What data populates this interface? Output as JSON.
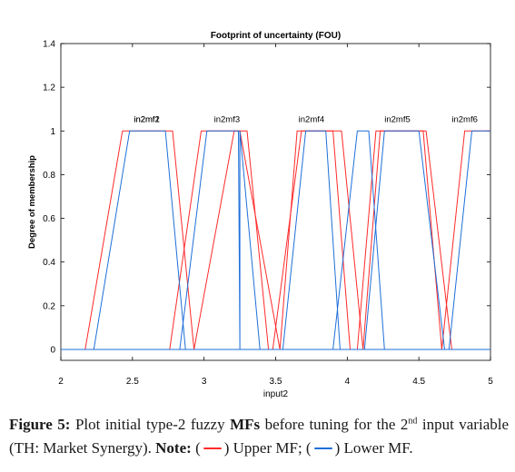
{
  "chart_data": {
    "type": "line",
    "title": "Footprint of uncertainty (FOU)",
    "xlabel": "input2",
    "ylabel": "Degree of membership",
    "xlim": [
      2,
      5
    ],
    "ylim": [
      -0.05,
      1.4
    ],
    "x_ticks": [
      2,
      2.5,
      3,
      3.5,
      4,
      4.5,
      5
    ],
    "x_tick_labels": [
      "2",
      "2.5",
      "3",
      "3.5",
      "4",
      "4.5",
      "5"
    ],
    "y_ticks": [
      0,
      0.2,
      0.4,
      0.6,
      0.8,
      1,
      1.2,
      1.4
    ],
    "y_tick_labels": [
      "0",
      "0.2",
      "0.4",
      "0.6",
      "0.8",
      "1",
      "1.2",
      "1.4"
    ],
    "grid": false,
    "colors": {
      "upper": "#ff2a2a",
      "lower": "#1e6fd9"
    },
    "mf_labels": [
      {
        "text": "in2mf2",
        "x": 2.6
      },
      {
        "text": "in2mf1",
        "x": 2.6
      },
      {
        "text": "in2mf3",
        "x": 3.16
      },
      {
        "text": "in2mf4",
        "x": 3.75
      },
      {
        "text": "in2mf5",
        "x": 4.35
      },
      {
        "text": "in2mf6",
        "x": 4.82
      }
    ],
    "series": [
      {
        "role": "upper",
        "x": [
          2.17,
          2.43,
          2.78,
          2.93,
          2.93,
          3.21,
          3.25,
          3.53,
          3.53,
          3.65,
          3.96,
          4.11,
          4.11,
          4.23,
          4.53,
          4.66,
          4.66,
          4.82,
          5.0
        ],
        "y": [
          0,
          1,
          1,
          0,
          0,
          1,
          1,
          0,
          0,
          1,
          1,
          0,
          0,
          1,
          1,
          0,
          0,
          1,
          1
        ]
      },
      {
        "role": "upper",
        "x": [
          2.76,
          2.98,
          3.3,
          3.45
        ],
        "y": [
          0,
          1,
          1,
          0
        ]
      },
      {
        "role": "upper",
        "x": [
          3.48,
          3.68,
          3.9,
          4.02
        ],
        "y": [
          0,
          1,
          1,
          0
        ]
      },
      {
        "role": "upper",
        "x": [
          4.07,
          4.2,
          4.55,
          4.73
        ],
        "y": [
          0,
          1,
          1,
          0
        ]
      },
      {
        "role": "lower",
        "x": [
          2.23,
          2.48,
          2.73,
          2.87
        ],
        "y": [
          0,
          1,
          1,
          0
        ]
      },
      {
        "role": "lower",
        "x": [
          2.83,
          3.02,
          3.24,
          3.25,
          3.25,
          3.39
        ],
        "y": [
          0,
          1,
          1,
          0,
          1,
          0
        ]
      },
      {
        "role": "lower",
        "x": [
          3.55,
          3.71,
          3.85,
          3.95
        ],
        "y": [
          0,
          1,
          1,
          0
        ]
      },
      {
        "role": "lower",
        "x": [
          3.9,
          4.07,
          4.15,
          4.26
        ],
        "y": [
          0,
          1,
          1,
          0
        ]
      },
      {
        "role": "lower",
        "x": [
          4.12,
          4.26,
          4.5,
          4.68
        ],
        "y": [
          0,
          1,
          1,
          0
        ]
      },
      {
        "role": "lower",
        "x": [
          4.71,
          4.87,
          5.0
        ],
        "y": [
          0,
          1,
          1
        ]
      },
      {
        "role": "lower",
        "x": [
          2.0,
          5.0
        ],
        "y": [
          0,
          0
        ]
      }
    ]
  },
  "caption": {
    "figure_label": "Figure 5:",
    "text_main": " Plot initial type-2 fuzzy ",
    "mfs": "MFs",
    "text_before": " before tuning for the 2",
    "superscript": "nd",
    "text_after": " input variable (TH: Market Synergy). ",
    "note_label": "Note:",
    "paren_open": " (",
    "upper_label": ") Upper MF; (",
    "lower_label": ") Lower MF."
  }
}
